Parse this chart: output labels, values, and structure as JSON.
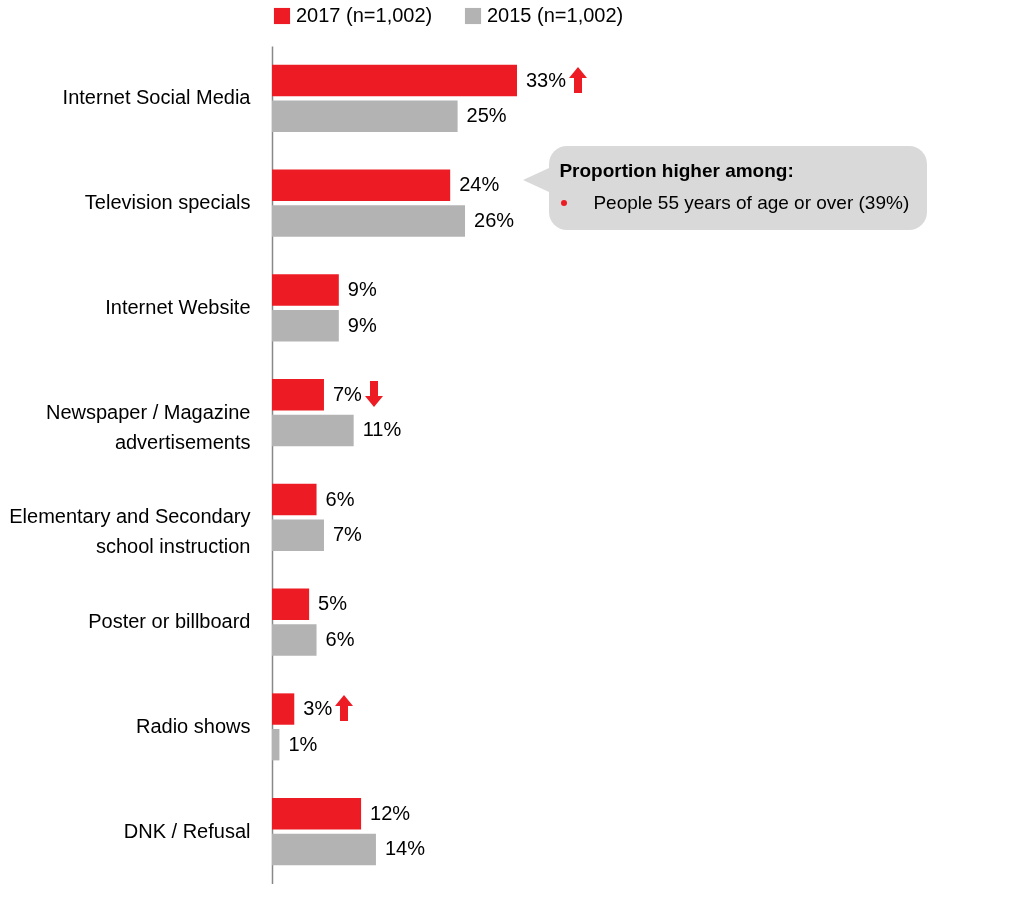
{
  "chart_data": {
    "type": "bar",
    "orientation": "horizontal",
    "legend": "top",
    "categories": [
      "Internet Social Media",
      "Television specials",
      "Internet Website",
      "Newspaper / Magazine advertisements",
      "Elementary and Secondary school instruction",
      "Poster or billboard",
      "Radio shows",
      "DNK / Refusal"
    ],
    "series": [
      {
        "name": "2017 (n=1,002)",
        "color": "#ed1c24",
        "values": [
          33,
          24,
          9,
          7,
          6,
          5,
          3,
          12
        ],
        "value_labels": [
          "33%",
          "24%",
          "9%",
          "7%",
          "6%",
          "5%",
          "3%",
          "12%"
        ]
      },
      {
        "name": "2015 (n=1,002)",
        "color": "#b3b3b3",
        "values": [
          25,
          26,
          9,
          11,
          7,
          6,
          1,
          14
        ],
        "value_labels": [
          "25%",
          "26%",
          "9%",
          "11%",
          "7%",
          "6%",
          "1%",
          "14%"
        ]
      }
    ],
    "annotations": [
      "Proportion higher among:",
      "People 55 years of age or over (39%)"
    ]
  }
}
